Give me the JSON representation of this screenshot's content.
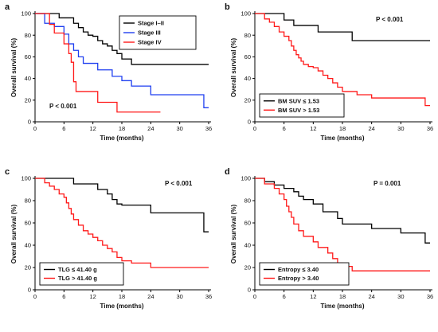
{
  "chart_data": [
    {
      "type": "line",
      "panel_label": "a",
      "xlabel": "Time (months)",
      "ylabel": "Overall survival (%)",
      "xlim": [
        0,
        36
      ],
      "ylim": [
        0,
        100
      ],
      "xticks": [
        0,
        6,
        12,
        18,
        24,
        30,
        36
      ],
      "yticks": [
        0,
        20,
        40,
        60,
        80,
        100
      ],
      "p_value": "P < 0.001",
      "legend_placement": "top-right",
      "series": [
        {
          "name": "Stage I–II",
          "color": "#000000",
          "x": [
            0,
            5,
            8,
            9,
            10,
            11,
            12,
            13,
            14,
            15,
            16,
            17,
            18,
            20,
            36
          ],
          "y": [
            100,
            96,
            91,
            87,
            83,
            80,
            79,
            75,
            72,
            70,
            66,
            63,
            58,
            53,
            53
          ]
        },
        {
          "name": "Stage III",
          "color": "#1f3ff0",
          "x": [
            0,
            2,
            4,
            6,
            7,
            8,
            9,
            10,
            13,
            16,
            18,
            20,
            24,
            35,
            36
          ],
          "y": [
            100,
            91,
            88,
            81,
            72,
            66,
            60,
            54,
            48,
            42,
            38,
            33,
            25,
            13,
            13
          ]
        },
        {
          "name": "Stage IV",
          "color": "#ff1a1a",
          "x": [
            0,
            3,
            4,
            6,
            7,
            7.5,
            8,
            8.5,
            13,
            17,
            26
          ],
          "y": [
            100,
            90,
            82,
            72,
            63,
            55,
            37,
            28,
            18,
            9,
            9
          ]
        }
      ]
    },
    {
      "type": "line",
      "panel_label": "b",
      "xlabel": "Time (months)",
      "ylabel": "Overall survival (%)",
      "xlim": [
        0,
        36
      ],
      "ylim": [
        0,
        100
      ],
      "xticks": [
        0,
        6,
        12,
        18,
        24,
        30,
        36
      ],
      "yticks": [
        0,
        20,
        40,
        60,
        80,
        100
      ],
      "p_value": "P < 0.001",
      "legend_placement": "bottom-left",
      "series": [
        {
          "name": "BM SUV ≤ 1.53",
          "color": "#000000",
          "x": [
            0,
            6,
            8,
            13,
            20,
            36
          ],
          "y": [
            100,
            94,
            89,
            83,
            75,
            75
          ]
        },
        {
          "name": "BM SUV > 1.53",
          "color": "#ff1a1a",
          "x": [
            0,
            2,
            3,
            4,
            5,
            6,
            7,
            7.5,
            8,
            8.5,
            9,
            9.5,
            10,
            11,
            12,
            13,
            14,
            15,
            16,
            17,
            18,
            21,
            24,
            35,
            36
          ],
          "y": [
            100,
            95,
            92,
            88,
            83,
            79,
            75,
            70,
            66,
            62,
            59,
            56,
            53,
            51,
            50,
            47,
            43,
            40,
            36,
            32,
            28,
            25,
            22,
            15,
            15
          ]
        }
      ]
    },
    {
      "type": "line",
      "panel_label": "c",
      "xlabel": "Time (months)",
      "ylabel": "Overall survival (%)",
      "xlim": [
        0,
        36
      ],
      "ylim": [
        0,
        100
      ],
      "xticks": [
        0,
        6,
        12,
        18,
        24,
        30,
        36
      ],
      "yticks": [
        0,
        20,
        40,
        60,
        80,
        100
      ],
      "p_value": "P < 0.001",
      "legend_placement": "bottom-left",
      "series": [
        {
          "name": "TLG ≤ 41.40 g",
          "color": "#000000",
          "x": [
            0,
            8,
            13,
            15,
            16,
            17,
            18,
            24,
            35,
            36
          ],
          "y": [
            100,
            95,
            90,
            86,
            81,
            77,
            76,
            69,
            52,
            52
          ]
        },
        {
          "name": "TLG > 41.40 g",
          "color": "#ff1a1a",
          "x": [
            0,
            2,
            3,
            4,
            5,
            6,
            6.5,
            7,
            7.5,
            8,
            9,
            10,
            11,
            12,
            13,
            14,
            15,
            16,
            17,
            18,
            20,
            24,
            36
          ],
          "y": [
            100,
            96,
            93,
            90,
            86,
            83,
            78,
            73,
            68,
            63,
            58,
            53,
            50,
            47,
            44,
            40,
            37,
            34,
            29,
            26,
            24,
            20,
            20
          ]
        }
      ]
    },
    {
      "type": "line",
      "panel_label": "d",
      "xlabel": "Time (months)",
      "ylabel": "Overall survival (%)",
      "xlim": [
        0,
        36
      ],
      "ylim": [
        0,
        100
      ],
      "xticks": [
        0,
        6,
        12,
        18,
        24,
        30,
        36
      ],
      "yticks": [
        0,
        20,
        40,
        60,
        80,
        100
      ],
      "p_value": "P = 0.001",
      "legend_placement": "bottom-left",
      "series": [
        {
          "name": "Entropy ≤ 3.40",
          "color": "#000000",
          "x": [
            0,
            2,
            4,
            6,
            8,
            9,
            10,
            12,
            14,
            17,
            18,
            24,
            30,
            35,
            36
          ],
          "y": [
            100,
            97,
            94,
            91,
            88,
            84,
            81,
            77,
            70,
            64,
            59,
            55,
            51,
            42,
            42
          ]
        },
        {
          "name": "Entropy > 3.40",
          "color": "#ff1a1a",
          "x": [
            0,
            2,
            4,
            5,
            6,
            6.5,
            7,
            7.5,
            8,
            9,
            10,
            12,
            13,
            15,
            16,
            17,
            18,
            20,
            36
          ],
          "y": [
            100,
            95,
            91,
            86,
            81,
            75,
            70,
            65,
            59,
            53,
            48,
            43,
            38,
            33,
            28,
            24,
            21,
            17,
            17
          ]
        }
      ]
    }
  ]
}
